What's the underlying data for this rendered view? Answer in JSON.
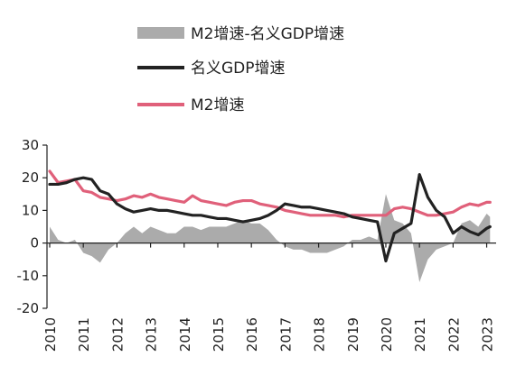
{
  "chart_data": {
    "type": "line",
    "title": "",
    "xlabel": "",
    "ylabel": "",
    "xlim": [
      2010.0,
      2023.2
    ],
    "ylim": [
      -20,
      30
    ],
    "y_ticks": [
      "30",
      "20",
      "10",
      "0",
      "-10",
      "-20"
    ],
    "x_ticks": [
      "2010",
      "2011",
      "2012",
      "2013",
      "2014",
      "2015",
      "2016",
      "2017",
      "2018",
      "2019",
      "2020",
      "2021",
      "2022",
      "2023"
    ],
    "legend_position": "top",
    "grid": false,
    "series": [
      {
        "name": "M2增速-名义GDP增速",
        "style": "area",
        "color": "#ababab",
        "x": [
          2010.0,
          2010.25,
          2010.5,
          2010.75,
          2011.0,
          2011.25,
          2011.5,
          2011.75,
          2012.0,
          2012.25,
          2012.5,
          2012.75,
          2013.0,
          2013.25,
          2013.5,
          2013.75,
          2014.0,
          2014.25,
          2014.5,
          2014.75,
          2015.0,
          2015.25,
          2015.5,
          2015.75,
          2016.0,
          2016.25,
          2016.5,
          2016.75,
          2017.0,
          2017.25,
          2017.5,
          2017.75,
          2018.0,
          2018.25,
          2018.5,
          2018.75,
          2019.0,
          2019.25,
          2019.5,
          2019.75,
          2020.0,
          2020.25,
          2020.5,
          2020.75,
          2021.0,
          2021.25,
          2021.5,
          2021.75,
          2022.0,
          2022.25,
          2022.5,
          2022.75,
          2023.0,
          2023.1
        ],
        "values": [
          5,
          1,
          0,
          1,
          -3,
          -4,
          -6,
          -2,
          0,
          3,
          5,
          3,
          5,
          4,
          3,
          3,
          5,
          5,
          4,
          5,
          5,
          5,
          6,
          7,
          6,
          6,
          4,
          1,
          -1,
          -2,
          -2,
          -3,
          -3,
          -3,
          -2,
          -1,
          1,
          1,
          2,
          1,
          15,
          7,
          6,
          3,
          -12,
          -5,
          -2,
          -1,
          0,
          6,
          7,
          5,
          9,
          8
        ]
      },
      {
        "name": "名义GDP增速",
        "style": "line",
        "color": "#222222",
        "x": [
          2010.0,
          2010.25,
          2010.5,
          2010.75,
          2011.0,
          2011.25,
          2011.5,
          2011.75,
          2012.0,
          2012.25,
          2012.5,
          2012.75,
          2013.0,
          2013.25,
          2013.5,
          2013.75,
          2014.0,
          2014.25,
          2014.5,
          2014.75,
          2015.0,
          2015.25,
          2015.5,
          2015.75,
          2016.0,
          2016.25,
          2016.5,
          2016.75,
          2017.0,
          2017.25,
          2017.5,
          2017.75,
          2018.0,
          2018.25,
          2018.5,
          2018.75,
          2019.0,
          2019.25,
          2019.5,
          2019.75,
          2020.0,
          2020.25,
          2020.5,
          2020.75,
          2021.0,
          2021.25,
          2021.5,
          2021.75,
          2022.0,
          2022.25,
          2022.5,
          2022.75,
          2023.0,
          2023.1
        ],
        "values": [
          18,
          18,
          18.5,
          19.5,
          20,
          19.5,
          16,
          15,
          12,
          10.5,
          9.5,
          10,
          10.5,
          10,
          10,
          9.5,
          9,
          8.5,
          8.5,
          8,
          7.5,
          7.5,
          7,
          6.5,
          7,
          7.5,
          8.5,
          10,
          12,
          11.5,
          11,
          11,
          10.5,
          10,
          9.5,
          9,
          8,
          7.5,
          7,
          6.5,
          -5.5,
          3,
          4.5,
          6,
          21,
          14,
          10,
          8,
          3,
          5,
          3.5,
          2.5,
          4.5,
          5
        ]
      },
      {
        "name": "M2增速",
        "style": "line",
        "color": "#e0607a",
        "x": [
          2010.0,
          2010.25,
          2010.5,
          2010.75,
          2011.0,
          2011.25,
          2011.5,
          2011.75,
          2012.0,
          2012.25,
          2012.5,
          2012.75,
          2013.0,
          2013.25,
          2013.5,
          2013.75,
          2014.0,
          2014.25,
          2014.5,
          2014.75,
          2015.0,
          2015.25,
          2015.5,
          2015.75,
          2016.0,
          2016.25,
          2016.5,
          2016.75,
          2017.0,
          2017.25,
          2017.5,
          2017.75,
          2018.0,
          2018.25,
          2018.5,
          2018.75,
          2019.0,
          2019.25,
          2019.5,
          2019.75,
          2020.0,
          2020.25,
          2020.5,
          2020.75,
          2021.0,
          2021.25,
          2021.5,
          2021.75,
          2022.0,
          2022.25,
          2022.5,
          2022.75,
          2023.0,
          2023.1
        ],
        "values": [
          22,
          18.5,
          19,
          19.5,
          16,
          15.5,
          14,
          13.5,
          13,
          13.5,
          14.5,
          14,
          15,
          14,
          13.5,
          13,
          12.5,
          14.5,
          13,
          12.5,
          12,
          11.5,
          12.5,
          13,
          13,
          12,
          11.5,
          11,
          10,
          9.5,
          9,
          8.5,
          8.5,
          8.5,
          8.5,
          8,
          8.5,
          8.5,
          8.5,
          8.5,
          8.5,
          10.5,
          11,
          10.5,
          9.5,
          8.5,
          8.5,
          9,
          9.5,
          11,
          12,
          11.5,
          12.5,
          12.5
        ]
      }
    ]
  }
}
